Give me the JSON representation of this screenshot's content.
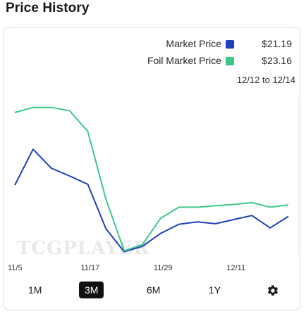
{
  "heading": "Price History",
  "legend": [
    {
      "label": "Market Price",
      "value": "$21.19",
      "color": "#1f3fbf"
    },
    {
      "label": "Foil Market Price",
      "value": "$23.16",
      "color": "#3ec98a"
    }
  ],
  "date_range": "12/12 to 12/14",
  "watermark": "TCGPLAYER",
  "ranges": [
    {
      "label": "1M",
      "active": false
    },
    {
      "label": "3M",
      "active": true
    },
    {
      "label": "6M",
      "active": false
    },
    {
      "label": "1Y",
      "active": false
    }
  ],
  "settings_icon": "gear-icon",
  "chart_data": {
    "type": "line",
    "x_tick_labels": [
      "11/5",
      "11/17",
      "11/29",
      "12/11"
    ],
    "ylim": [
      4,
      38
    ],
    "grid": false,
    "series": [
      {
        "name": "Market Price",
        "color": "#1f3fbf",
        "values": [
          19,
          26.8,
          22.7,
          21,
          19.2,
          9.5,
          4.5,
          5.7,
          8.5,
          10.5,
          11,
          10.6,
          11.5,
          12.4,
          9.7,
          12.2
        ]
      },
      {
        "name": "Foil Market Price",
        "color": "#3ec98a",
        "values": [
          34.8,
          35.9,
          35.9,
          35.2,
          30.7,
          15.9,
          4.7,
          6.1,
          11.8,
          14.2,
          14.2,
          14.5,
          14.8,
          15.2,
          14.2,
          14.7
        ]
      }
    ]
  }
}
